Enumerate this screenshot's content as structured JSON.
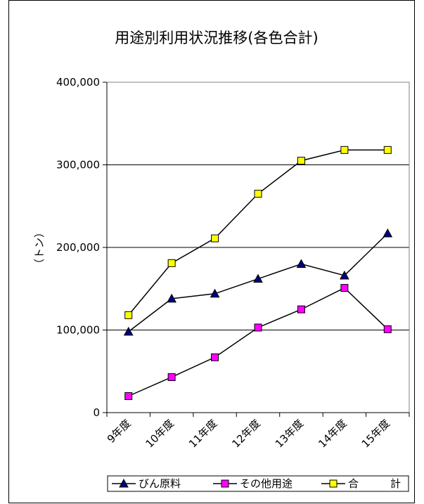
{
  "chart_data": {
    "type": "line",
    "title": "用途別利用状況推移(各色合計)",
    "ylabel": "（トン）",
    "xlabel": "",
    "categories": [
      "9年度",
      "10年度",
      "11年度",
      "12年度",
      "13年度",
      "14年度",
      "15年度"
    ],
    "ylim": [
      0,
      400000
    ],
    "yticks": [
      0,
      100000,
      200000,
      300000,
      400000
    ],
    "ytick_labels": [
      "0",
      "100,000",
      "200,000",
      "300,000",
      "400,000"
    ],
    "grid": true,
    "legend_position": "bottom",
    "series": [
      {
        "name": "びん原料",
        "marker": "triangle",
        "color": "#000080",
        "values": [
          98000,
          138000,
          144000,
          162000,
          180000,
          166000,
          217000
        ]
      },
      {
        "name": "その他用途",
        "marker": "square",
        "color": "#ff00ff",
        "values": [
          20000,
          43000,
          67000,
          103000,
          125000,
          151000,
          101000
        ]
      },
      {
        "name": "合　　　計",
        "marker": "square",
        "color": "#ffff00",
        "values": [
          118000,
          181000,
          211000,
          265000,
          305000,
          318000,
          318000
        ]
      }
    ]
  }
}
